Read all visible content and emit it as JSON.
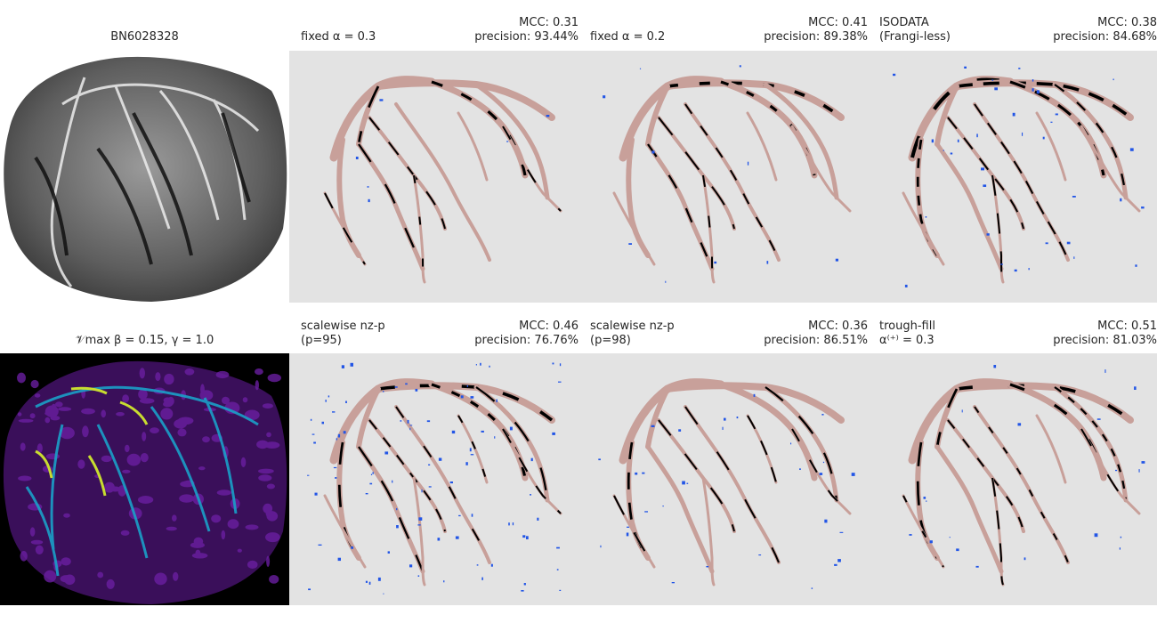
{
  "panels": [
    {
      "id": "p0",
      "title_left": "",
      "title_center": "BN6028328",
      "metric_mcc": "",
      "metric_precision": ""
    },
    {
      "id": "p1",
      "title_left": "fixed α = 0.3",
      "metric_mcc": "MCC: 0.31",
      "metric_precision": "precision: 93.44%"
    },
    {
      "id": "p2",
      "title_left": "fixed α = 0.2",
      "metric_mcc": "MCC: 0.41",
      "metric_precision": "precision: 89.38%"
    },
    {
      "id": "p3",
      "title_left": "ISODATA\n(Frangi-less)",
      "metric_mcc": "MCC: 0.38",
      "metric_precision": "precision: 84.68%"
    },
    {
      "id": "p4",
      "title_left": "",
      "title_center": "𝒱max  β = 0.15, γ = 1.0",
      "metric_mcc": "",
      "metric_precision": ""
    },
    {
      "id": "p5",
      "title_left": "scalewise nz-p\n(p=95)",
      "metric_mcc": "MCC: 0.46",
      "metric_precision": "precision: 76.76%"
    },
    {
      "id": "p6",
      "title_left": "scalewise nz-p\n(p=98)",
      "metric_mcc": "MCC: 0.36",
      "metric_precision": "precision: 86.51%"
    },
    {
      "id": "p7",
      "title_left": "trough-fill\n α⁽⁺⁾ = 0.3",
      "metric_mcc": "MCC: 0.51",
      "metric_precision": "precision: 81.03%"
    }
  ],
  "colors": {
    "panel_bg": "#e3e3e3",
    "vessel_true": "#c8a09a",
    "vessel_missed": "#000000",
    "false_positive": "#2255e6",
    "heatmap_bg": "#000000",
    "heatmap_low": "#5a1a8c",
    "heatmap_mid": "#1aa0c8",
    "heatmap_high": "#d8e020"
  }
}
